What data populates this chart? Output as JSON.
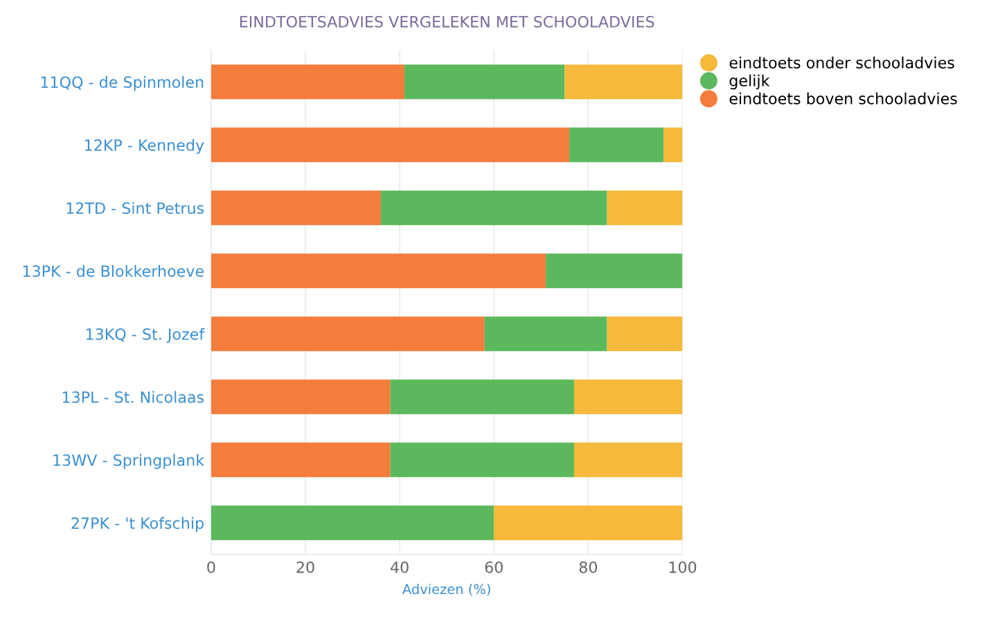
{
  "chart_data": {
    "type": "bar",
    "orientation": "horizontal",
    "stacked": true,
    "title": "EINDTOETSADVIES VERGELEKEN MET SCHOOLADVIES",
    "xlabel": "Adviezen (%)",
    "categories": [
      "11QQ - de Spinmolen",
      "12KP - Kennedy",
      "12TD - Sint Petrus",
      "13PK - de Blokkerhoeve",
      "13KQ - St. Jozef",
      "13PL - St. Nicolaas",
      "13WV - Springplank",
      "27PK - 't Kofschip"
    ],
    "series": [
      {
        "name": "eindtoets boven schooladvies",
        "color": "#f47c3c",
        "values": [
          41,
          76,
          36,
          71,
          58,
          38,
          38,
          0
        ]
      },
      {
        "name": "gelijk",
        "color": "#5cb85c",
        "values": [
          34,
          20,
          48,
          29,
          26,
          39,
          39,
          60
        ]
      },
      {
        "name": "eindtoets onder schooladvies",
        "color": "#f6b93b",
        "values": [
          25,
          4,
          16,
          0,
          16,
          23,
          23,
          40
        ]
      }
    ],
    "xlim": [
      0,
      100
    ],
    "xticks": [
      0,
      20,
      40,
      60,
      80,
      100
    ],
    "grid": "x",
    "legend": "top right"
  }
}
